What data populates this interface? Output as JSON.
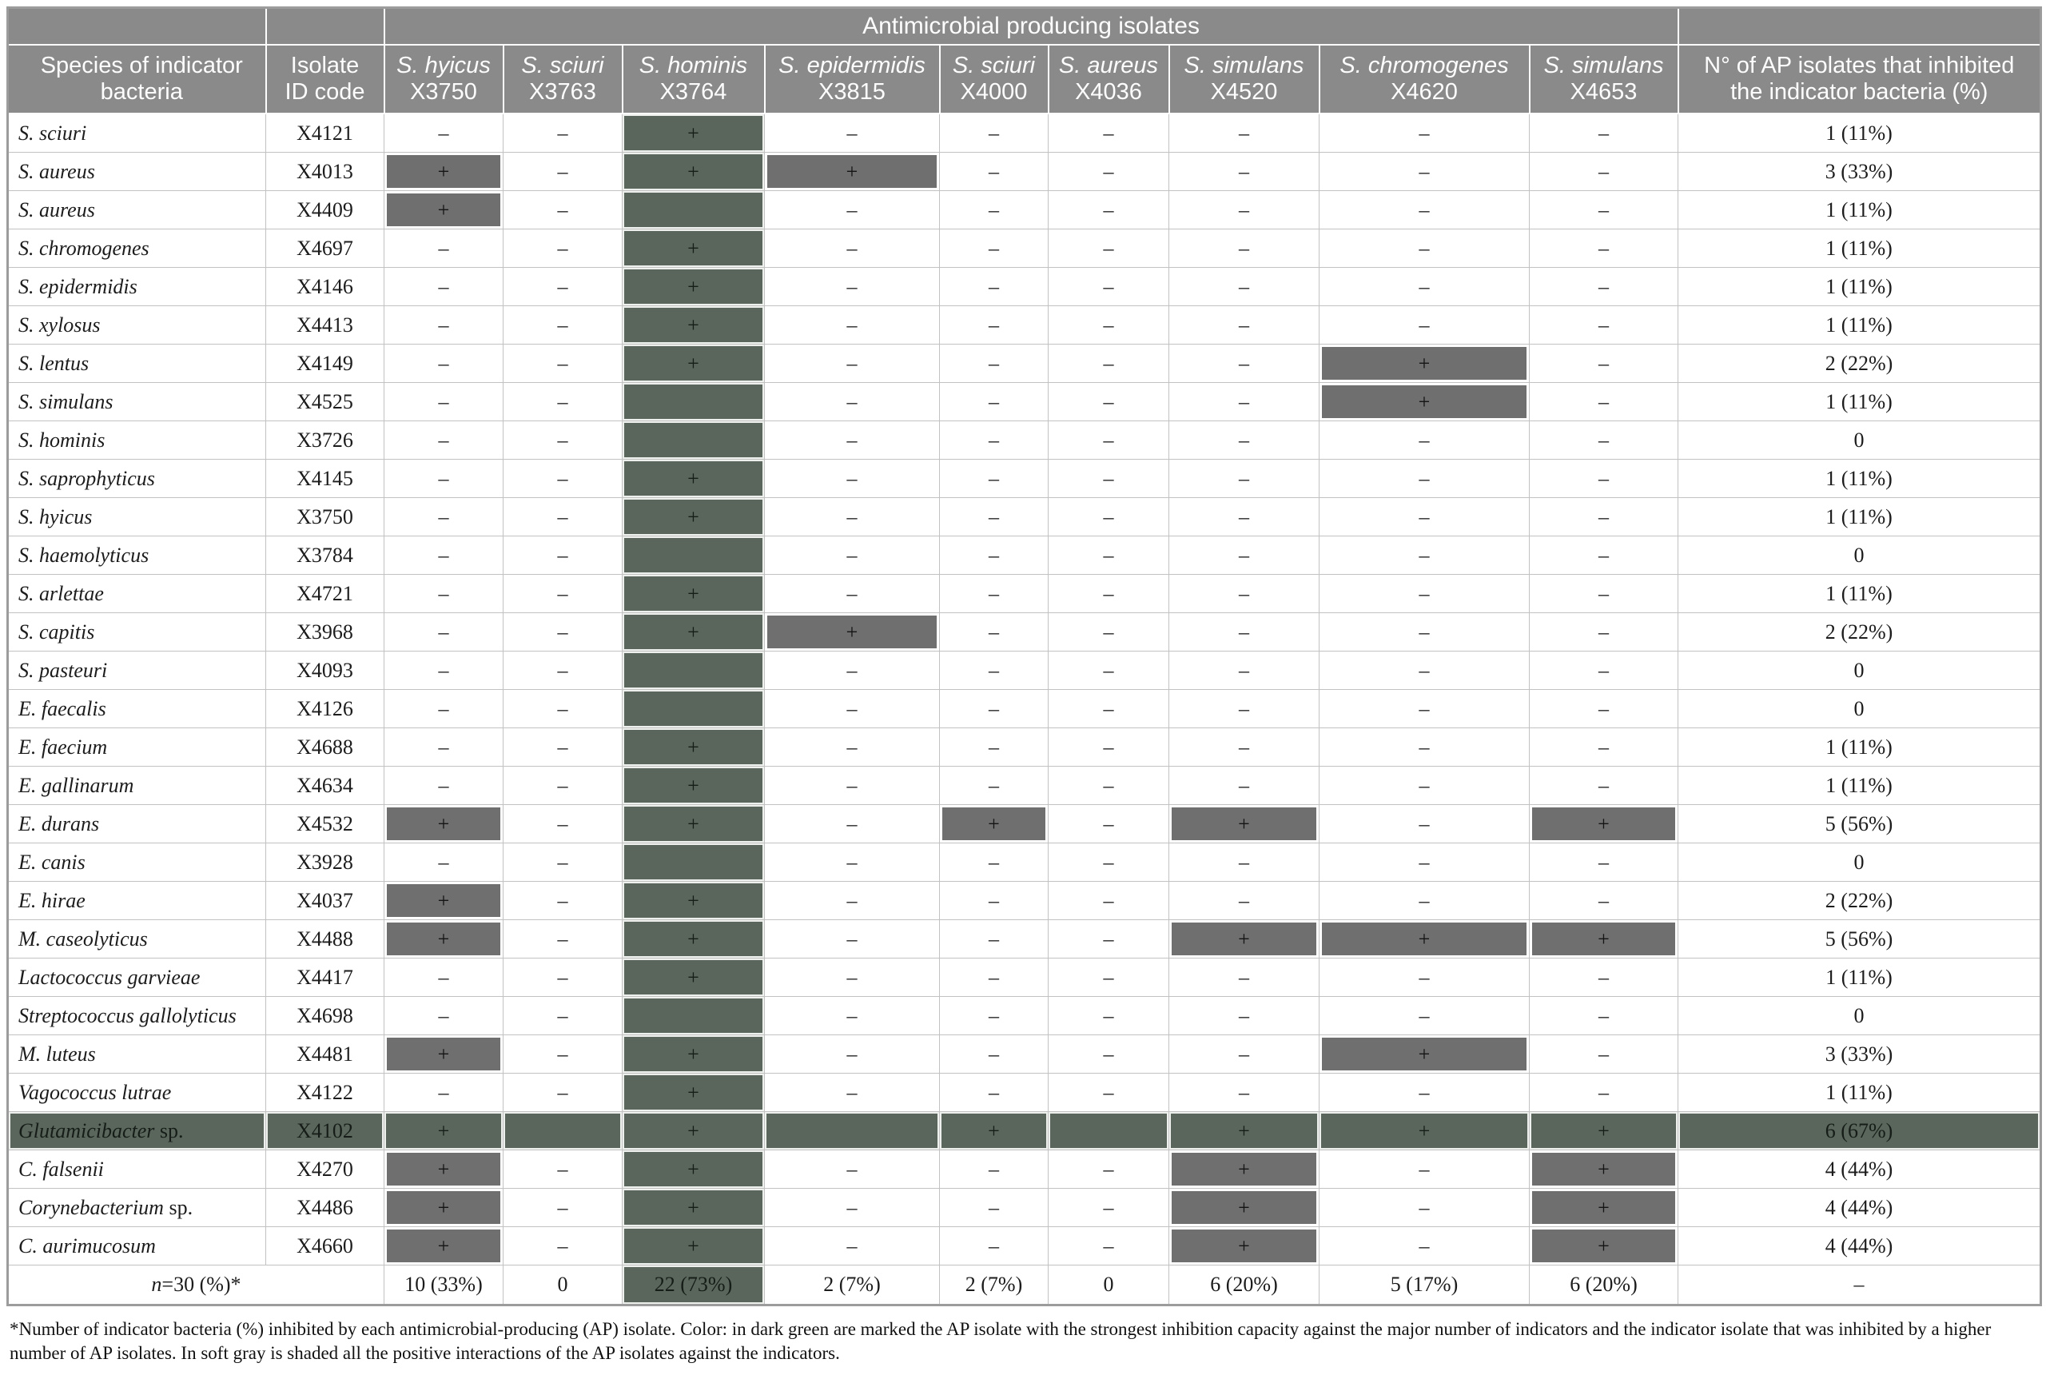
{
  "title_row": {
    "group_title": "Antimicrobial producing isolates"
  },
  "headers": {
    "species_col": "Species of indicator\nbacteria",
    "isolate_col": "Isolate\nID code",
    "count_col": "N° of AP isolates that inhibited\nthe indicator bacteria (%)"
  },
  "ap_isolates": [
    {
      "species": "S. hyicus",
      "id": "X3750",
      "highlight": false
    },
    {
      "species": "S. sciuri",
      "id": "X3763",
      "highlight": false
    },
    {
      "species": "S. hominis",
      "id": "X3764",
      "highlight": true
    },
    {
      "species": "S. epidermidis",
      "id": "X3815",
      "highlight": false
    },
    {
      "species": "S. sciuri",
      "id": "X4000",
      "highlight": false
    },
    {
      "species": "S. aureus",
      "id": "X4036",
      "highlight": false
    },
    {
      "species": "S. simulans",
      "id": "X4520",
      "highlight": false
    },
    {
      "species": "S. chromogenes",
      "id": "X4620",
      "highlight": false
    },
    {
      "species": "S. simulans",
      "id": "X4653",
      "highlight": false
    }
  ],
  "rows": [
    {
      "species": "S. sciuri",
      "suffix": "",
      "id": "X4121",
      "cells": [
        "–",
        "–",
        "+",
        "–",
        "–",
        "–",
        "–",
        "–",
        "–"
      ],
      "count": "1 (11%)",
      "highlight": false
    },
    {
      "species": "S. aureus",
      "suffix": "",
      "id": "X4013",
      "cells": [
        "+",
        "–",
        "+",
        "+",
        "–",
        "–",
        "–",
        "–",
        "–"
      ],
      "count": "3 (33%)",
      "highlight": false
    },
    {
      "species": "S. aureus",
      "suffix": "",
      "id": "X4409",
      "cells": [
        "+",
        "–",
        "",
        "–",
        "–",
        "–",
        "–",
        "–",
        "–"
      ],
      "count": "1 (11%)",
      "highlight": false
    },
    {
      "species": "S. chromogenes",
      "suffix": "",
      "id": "X4697",
      "cells": [
        "–",
        "–",
        "+",
        "–",
        "–",
        "–",
        "–",
        "–",
        "–"
      ],
      "count": "1 (11%)",
      "highlight": false
    },
    {
      "species": "S. epidermidis",
      "suffix": "",
      "id": "X4146",
      "cells": [
        "–",
        "–",
        "+",
        "–",
        "–",
        "–",
        "–",
        "–",
        "–"
      ],
      "count": "1 (11%)",
      "highlight": false
    },
    {
      "species": "S. xylosus",
      "suffix": "",
      "id": "X4413",
      "cells": [
        "–",
        "–",
        "+",
        "–",
        "–",
        "–",
        "–",
        "–",
        "–"
      ],
      "count": "1 (11%)",
      "highlight": false
    },
    {
      "species": "S. lentus",
      "suffix": "",
      "id": "X4149",
      "cells": [
        "–",
        "–",
        "+",
        "–",
        "–",
        "–",
        "–",
        "+",
        "–"
      ],
      "count": "2 (22%)",
      "highlight": false
    },
    {
      "species": "S. simulans",
      "suffix": "",
      "id": "X4525",
      "cells": [
        "–",
        "–",
        "",
        "–",
        "–",
        "–",
        "–",
        "+",
        "–"
      ],
      "count": "1 (11%)",
      "highlight": false
    },
    {
      "species": "S. hominis",
      "suffix": "",
      "id": "X3726",
      "cells": [
        "–",
        "–",
        "",
        "–",
        "–",
        "–",
        "–",
        "–",
        "–"
      ],
      "count": "0",
      "highlight": false
    },
    {
      "species": "S. saprophyticus",
      "suffix": "",
      "id": "X4145",
      "cells": [
        "–",
        "–",
        "+",
        "–",
        "–",
        "–",
        "–",
        "–",
        "–"
      ],
      "count": "1 (11%)",
      "highlight": false
    },
    {
      "species": "S. hyicus",
      "suffix": "",
      "id": "X3750",
      "cells": [
        "–",
        "–",
        "+",
        "–",
        "–",
        "–",
        "–",
        "–",
        "–"
      ],
      "count": "1 (11%)",
      "highlight": false
    },
    {
      "species": "S. haemolyticus",
      "suffix": "",
      "id": "X3784",
      "cells": [
        "–",
        "–",
        "",
        "–",
        "–",
        "–",
        "–",
        "–",
        "–"
      ],
      "count": "0",
      "highlight": false
    },
    {
      "species": "S. arlettae",
      "suffix": "",
      "id": "X4721",
      "cells": [
        "–",
        "–",
        "+",
        "–",
        "–",
        "–",
        "–",
        "–",
        "–"
      ],
      "count": "1 (11%)",
      "highlight": false
    },
    {
      "species": "S. capitis",
      "suffix": "",
      "id": "X3968",
      "cells": [
        "–",
        "–",
        "+",
        "+",
        "–",
        "–",
        "–",
        "–",
        "–"
      ],
      "count": "2 (22%)",
      "highlight": false
    },
    {
      "species": "S. pasteuri",
      "suffix": "",
      "id": "X4093",
      "cells": [
        "–",
        "–",
        "",
        "–",
        "–",
        "–",
        "–",
        "–",
        "–"
      ],
      "count": "0",
      "highlight": false
    },
    {
      "species": "E. faecalis",
      "suffix": "",
      "id": "X4126",
      "cells": [
        "–",
        "–",
        "",
        "–",
        "–",
        "–",
        "–",
        "–",
        "–"
      ],
      "count": "0",
      "highlight": false
    },
    {
      "species": "E. faecium",
      "suffix": "",
      "id": "X4688",
      "cells": [
        "–",
        "–",
        "+",
        "–",
        "–",
        "–",
        "–",
        "–",
        "–"
      ],
      "count": "1 (11%)",
      "highlight": false
    },
    {
      "species": "E. gallinarum",
      "suffix": "",
      "id": "X4634",
      "cells": [
        "–",
        "–",
        "+",
        "–",
        "–",
        "–",
        "–",
        "–",
        "–"
      ],
      "count": "1 (11%)",
      "highlight": false
    },
    {
      "species": "E. durans",
      "suffix": "",
      "id": "X4532",
      "cells": [
        "+",
        "–",
        "+",
        "–",
        "+",
        "–",
        "+",
        "–",
        "+"
      ],
      "count": "5 (56%)",
      "highlight": false
    },
    {
      "species": "E. canis",
      "suffix": "",
      "id": "X3928",
      "cells": [
        "–",
        "–",
        "",
        "–",
        "–",
        "–",
        "–",
        "–",
        "–"
      ],
      "count": "0",
      "highlight": false
    },
    {
      "species": "E. hirae",
      "suffix": "",
      "id": "X4037",
      "cells": [
        "+",
        "–",
        "+",
        "–",
        "–",
        "–",
        "–",
        "–",
        "–"
      ],
      "count": "2 (22%)",
      "highlight": false
    },
    {
      "species": "M. caseolyticus",
      "suffix": "",
      "id": "X4488",
      "cells": [
        "+",
        "–",
        "+",
        "–",
        "–",
        "–",
        "+",
        "+",
        "+"
      ],
      "count": "5 (56%)",
      "highlight": false
    },
    {
      "species": "Lactococcus garvieae",
      "suffix": "",
      "id": "X4417",
      "cells": [
        "–",
        "–",
        "+",
        "–",
        "–",
        "–",
        "–",
        "–",
        "–"
      ],
      "count": "1 (11%)",
      "highlight": false
    },
    {
      "species": "Streptococcus gallolyticus",
      "suffix": "",
      "id": "X4698",
      "cells": [
        "–",
        "–",
        "",
        "–",
        "–",
        "–",
        "–",
        "–",
        "–"
      ],
      "count": "0",
      "highlight": false
    },
    {
      "species": "M. luteus",
      "suffix": "",
      "id": "X4481",
      "cells": [
        "+",
        "–",
        "+",
        "–",
        "–",
        "–",
        "–",
        "+",
        "–"
      ],
      "count": "3 (33%)",
      "highlight": false
    },
    {
      "species": "Vagococcus lutrae",
      "suffix": "",
      "id": "X4122",
      "cells": [
        "–",
        "–",
        "+",
        "–",
        "–",
        "–",
        "–",
        "–",
        "–"
      ],
      "count": "1 (11%)",
      "highlight": false
    },
    {
      "species": "Glutamicibacter",
      "suffix": " sp.",
      "id": "X4102",
      "cells": [
        "+",
        "",
        "+",
        "",
        "+",
        "",
        "+",
        "+",
        "+"
      ],
      "count": "6 (67%)",
      "highlight": true
    },
    {
      "species": "C. falsenii",
      "suffix": "",
      "id": "X4270",
      "cells": [
        "+",
        "–",
        "+",
        "–",
        "–",
        "–",
        "+",
        "–",
        "+"
      ],
      "count": "4 (44%)",
      "highlight": false
    },
    {
      "species": "Corynebacterium",
      "suffix": " sp.",
      "id": "X4486",
      "cells": [
        "+",
        "–",
        "+",
        "–",
        "–",
        "–",
        "+",
        "–",
        "+"
      ],
      "count": "4 (44%)",
      "highlight": false
    },
    {
      "species": "C. aurimucosum",
      "suffix": "",
      "id": "X4660",
      "cells": [
        "+",
        "–",
        "+",
        "–",
        "–",
        "–",
        "+",
        "–",
        "+"
      ],
      "count": "4 (44%)",
      "highlight": false
    }
  ],
  "summary": {
    "label_italic": "n",
    "label_rest": "=30 (%)*",
    "values": [
      "10 (33%)",
      "0",
      "22 (73%)",
      "2 (7%)",
      "2 (7%)",
      "0",
      "6 (20%)",
      "5 (17%)",
      "6 (20%)"
    ],
    "count": "–"
  },
  "footnote": "*Number of indicator bacteria (%) inhibited by each antimicrobial-producing (AP) isolate. Color: in dark green are marked the AP isolate with the strongest inhibition capacity against the major number of indicators and the indicator isolate that was inhibited by a higher number of AP isolates. In soft gray is shaded all the positive interactions of the AP isolates against the indicators.",
  "colors": {
    "header_gray": "#8a8a8a",
    "positive_gray": "#6f6f6f",
    "highlight_green": "#5a665c"
  }
}
